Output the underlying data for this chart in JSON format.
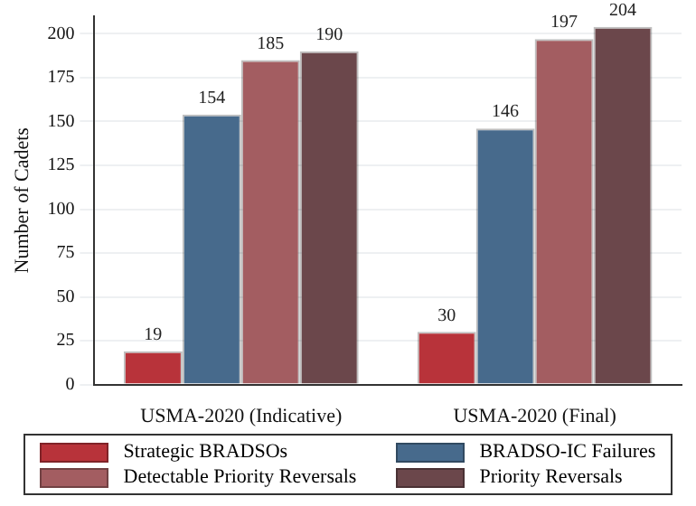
{
  "chart_data": {
    "type": "bar",
    "ylabel": "Number of Cadets",
    "categories": [
      "USMA-2020 (Indicative)",
      "USMA-2020 (Final)"
    ],
    "series": [
      {
        "name": "Strategic BRADSOs",
        "color": "#b8333a",
        "values": [
          19,
          30
        ]
      },
      {
        "name": "BRADSO-IC Failures",
        "color": "#476a8c",
        "values": [
          154,
          146
        ]
      },
      {
        "name": "Detectable Priority Reversals",
        "color": "#a35d61",
        "values": [
          185,
          197
        ]
      },
      {
        "name": "Priority Reversals",
        "color": "#6b474b",
        "values": [
          190,
          204
        ]
      }
    ],
    "ylim": [
      0,
      210
    ],
    "yticks": [
      0,
      25,
      50,
      75,
      100,
      125,
      150,
      175,
      200
    ],
    "grid": "y",
    "legend": "bottom",
    "data_labels": true
  }
}
